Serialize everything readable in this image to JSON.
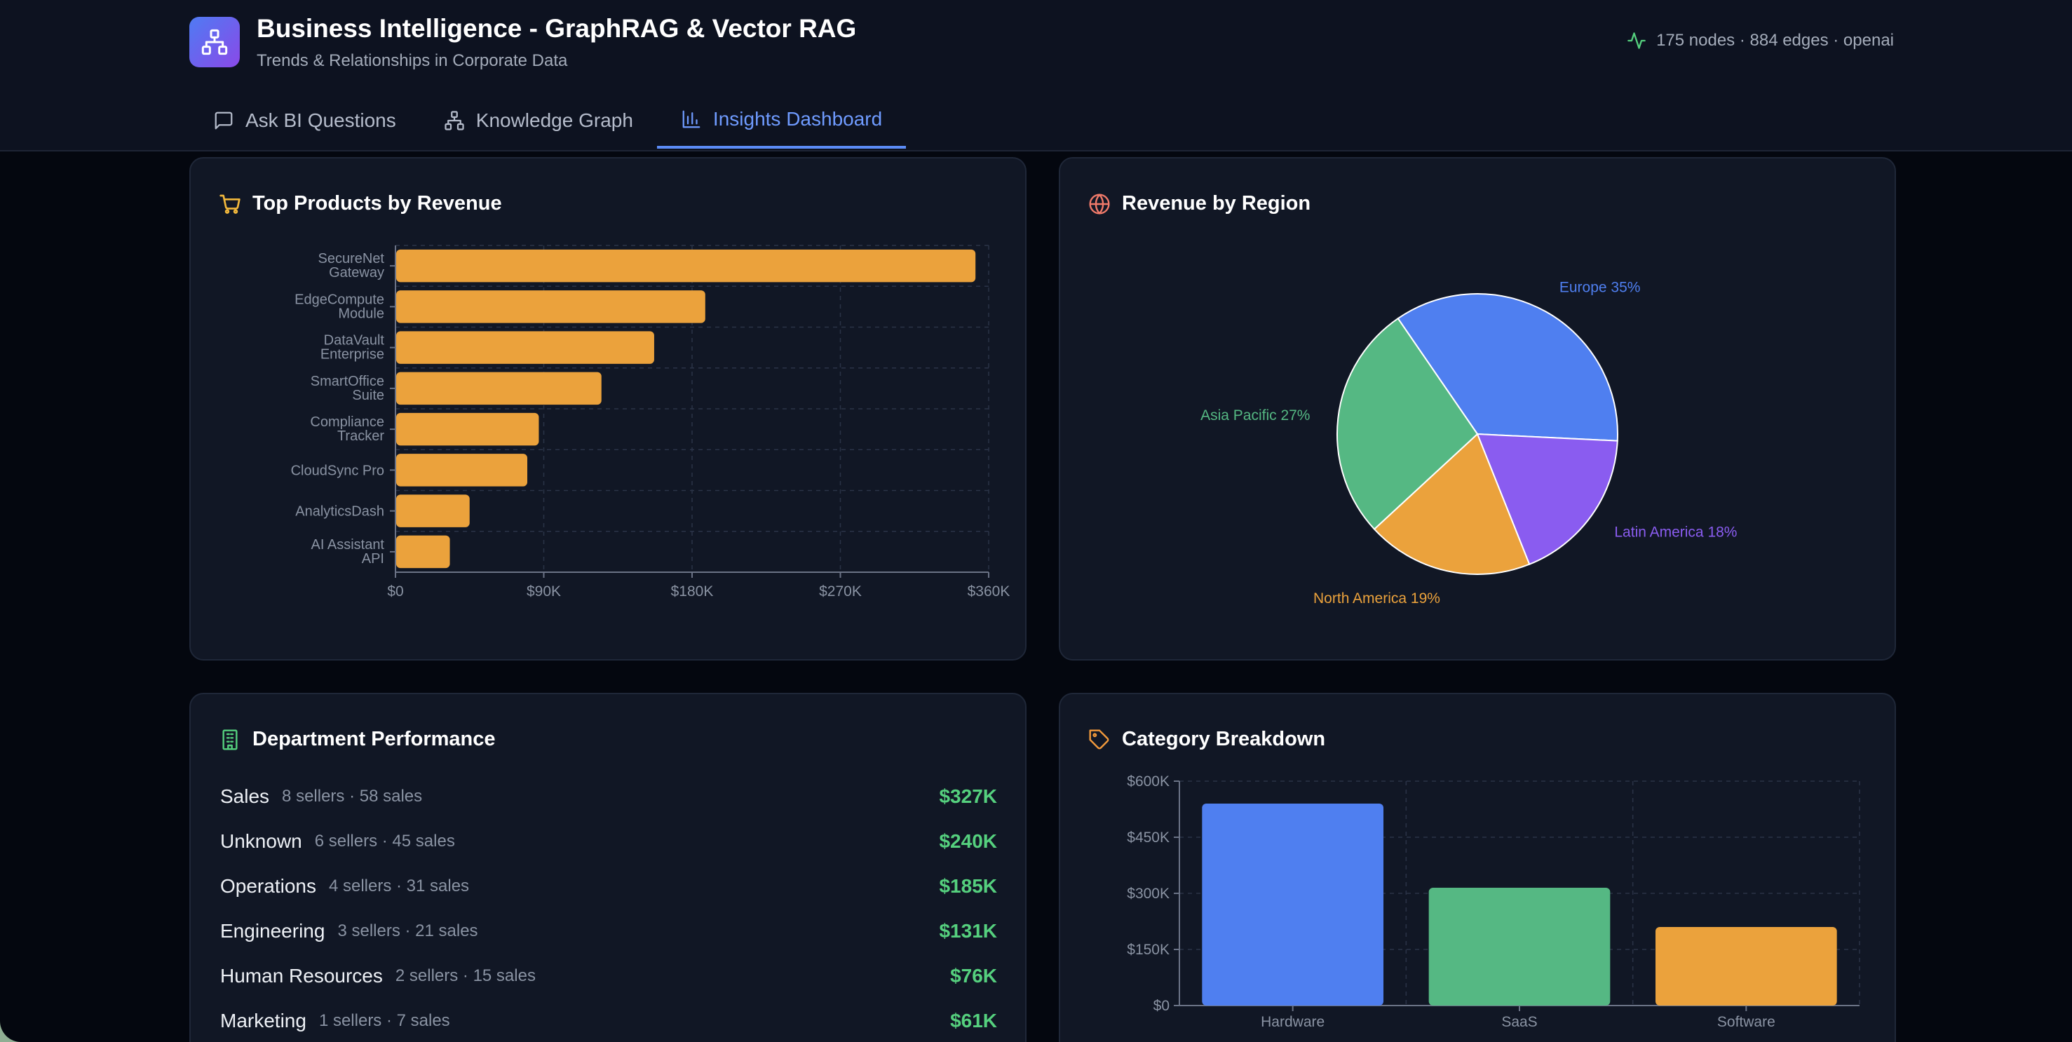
{
  "header": {
    "title": "Business Intelligence - GraphRAG & Vector RAG",
    "subtitle": "Trends & Relationships in Corporate Data",
    "stats": "175 nodes · 884 edges · openai",
    "logo_icon": "network-icon"
  },
  "tabs": [
    {
      "label": "Ask BI Questions",
      "icon": "chat-icon",
      "active": false
    },
    {
      "label": "Knowledge Graph",
      "icon": "network-icon",
      "active": false
    },
    {
      "label": "Insights Dashboard",
      "icon": "bar-chart-icon",
      "active": true
    }
  ],
  "colors": {
    "accent": "#5b8bf6",
    "bar_orange": "#eba23c",
    "blue": "#4f7ff0",
    "green": "#55b883",
    "purple": "#8a5cf0",
    "positive": "#55d07e"
  },
  "top_products": {
    "title": "Top Products by Revenue",
    "icon": "cart-icon"
  },
  "revenue_region": {
    "title": "Revenue by Region",
    "icon": "globe-icon"
  },
  "department_performance": {
    "title": "Department Performance",
    "icon": "building-icon",
    "rows": [
      {
        "name": "Sales",
        "meta": "8 sellers · 58 sales",
        "value": "$327K"
      },
      {
        "name": "Unknown",
        "meta": "6 sellers · 45 sales",
        "value": "$240K"
      },
      {
        "name": "Operations",
        "meta": "4 sellers · 31 sales",
        "value": "$185K"
      },
      {
        "name": "Engineering",
        "meta": "3 sellers · 21 sales",
        "value": "$131K"
      },
      {
        "name": "Human Resources",
        "meta": "2 sellers · 15 sales",
        "value": "$76K"
      },
      {
        "name": "Marketing",
        "meta": "1 sellers · 7 sales",
        "value": "$61K"
      }
    ]
  },
  "category_breakdown": {
    "title": "Category Breakdown",
    "icon": "tag-icon"
  },
  "chart_data": [
    {
      "type": "bar",
      "orientation": "horizontal",
      "title": "Top Products by Revenue",
      "categories": [
        "SecureNet Gateway",
        "EdgeCompute Module",
        "DataVault Enterprise",
        "SmartOffice Suite",
        "Compliance Tracker",
        "CloudSync Pro",
        "AnalyticsDash",
        "AI Assistant API"
      ],
      "values": [
        352000,
        188000,
        157000,
        125000,
        87000,
        80000,
        45000,
        33000
      ],
      "xlim": [
        0,
        360000
      ],
      "xticks": [
        "$0",
        "$90K",
        "$180K",
        "$270K",
        "$360K"
      ],
      "grid": true
    },
    {
      "type": "pie",
      "title": "Revenue by Region",
      "labels": [
        "Europe",
        "Latin America",
        "North America",
        "Asia Pacific"
      ],
      "values": [
        35,
        18,
        19,
        27
      ],
      "display_labels": [
        "Europe 35%",
        "Latin America 18%",
        "North America 19%",
        "Asia Pacific 27%"
      ],
      "colors": [
        "#4f7ff0",
        "#8a5cf0",
        "#eba23c",
        "#55b883"
      ]
    },
    {
      "type": "bar",
      "title": "Category Breakdown",
      "categories": [
        "Hardware",
        "SaaS",
        "Software"
      ],
      "values": [
        540000,
        315000,
        210000
      ],
      "ylim": [
        0,
        600000
      ],
      "yticks": [
        "$0",
        "$150K",
        "$300K",
        "$450K",
        "$600K"
      ],
      "colors": [
        "#4f7ff0",
        "#55b883",
        "#eba23c"
      ],
      "grid": true
    }
  ]
}
